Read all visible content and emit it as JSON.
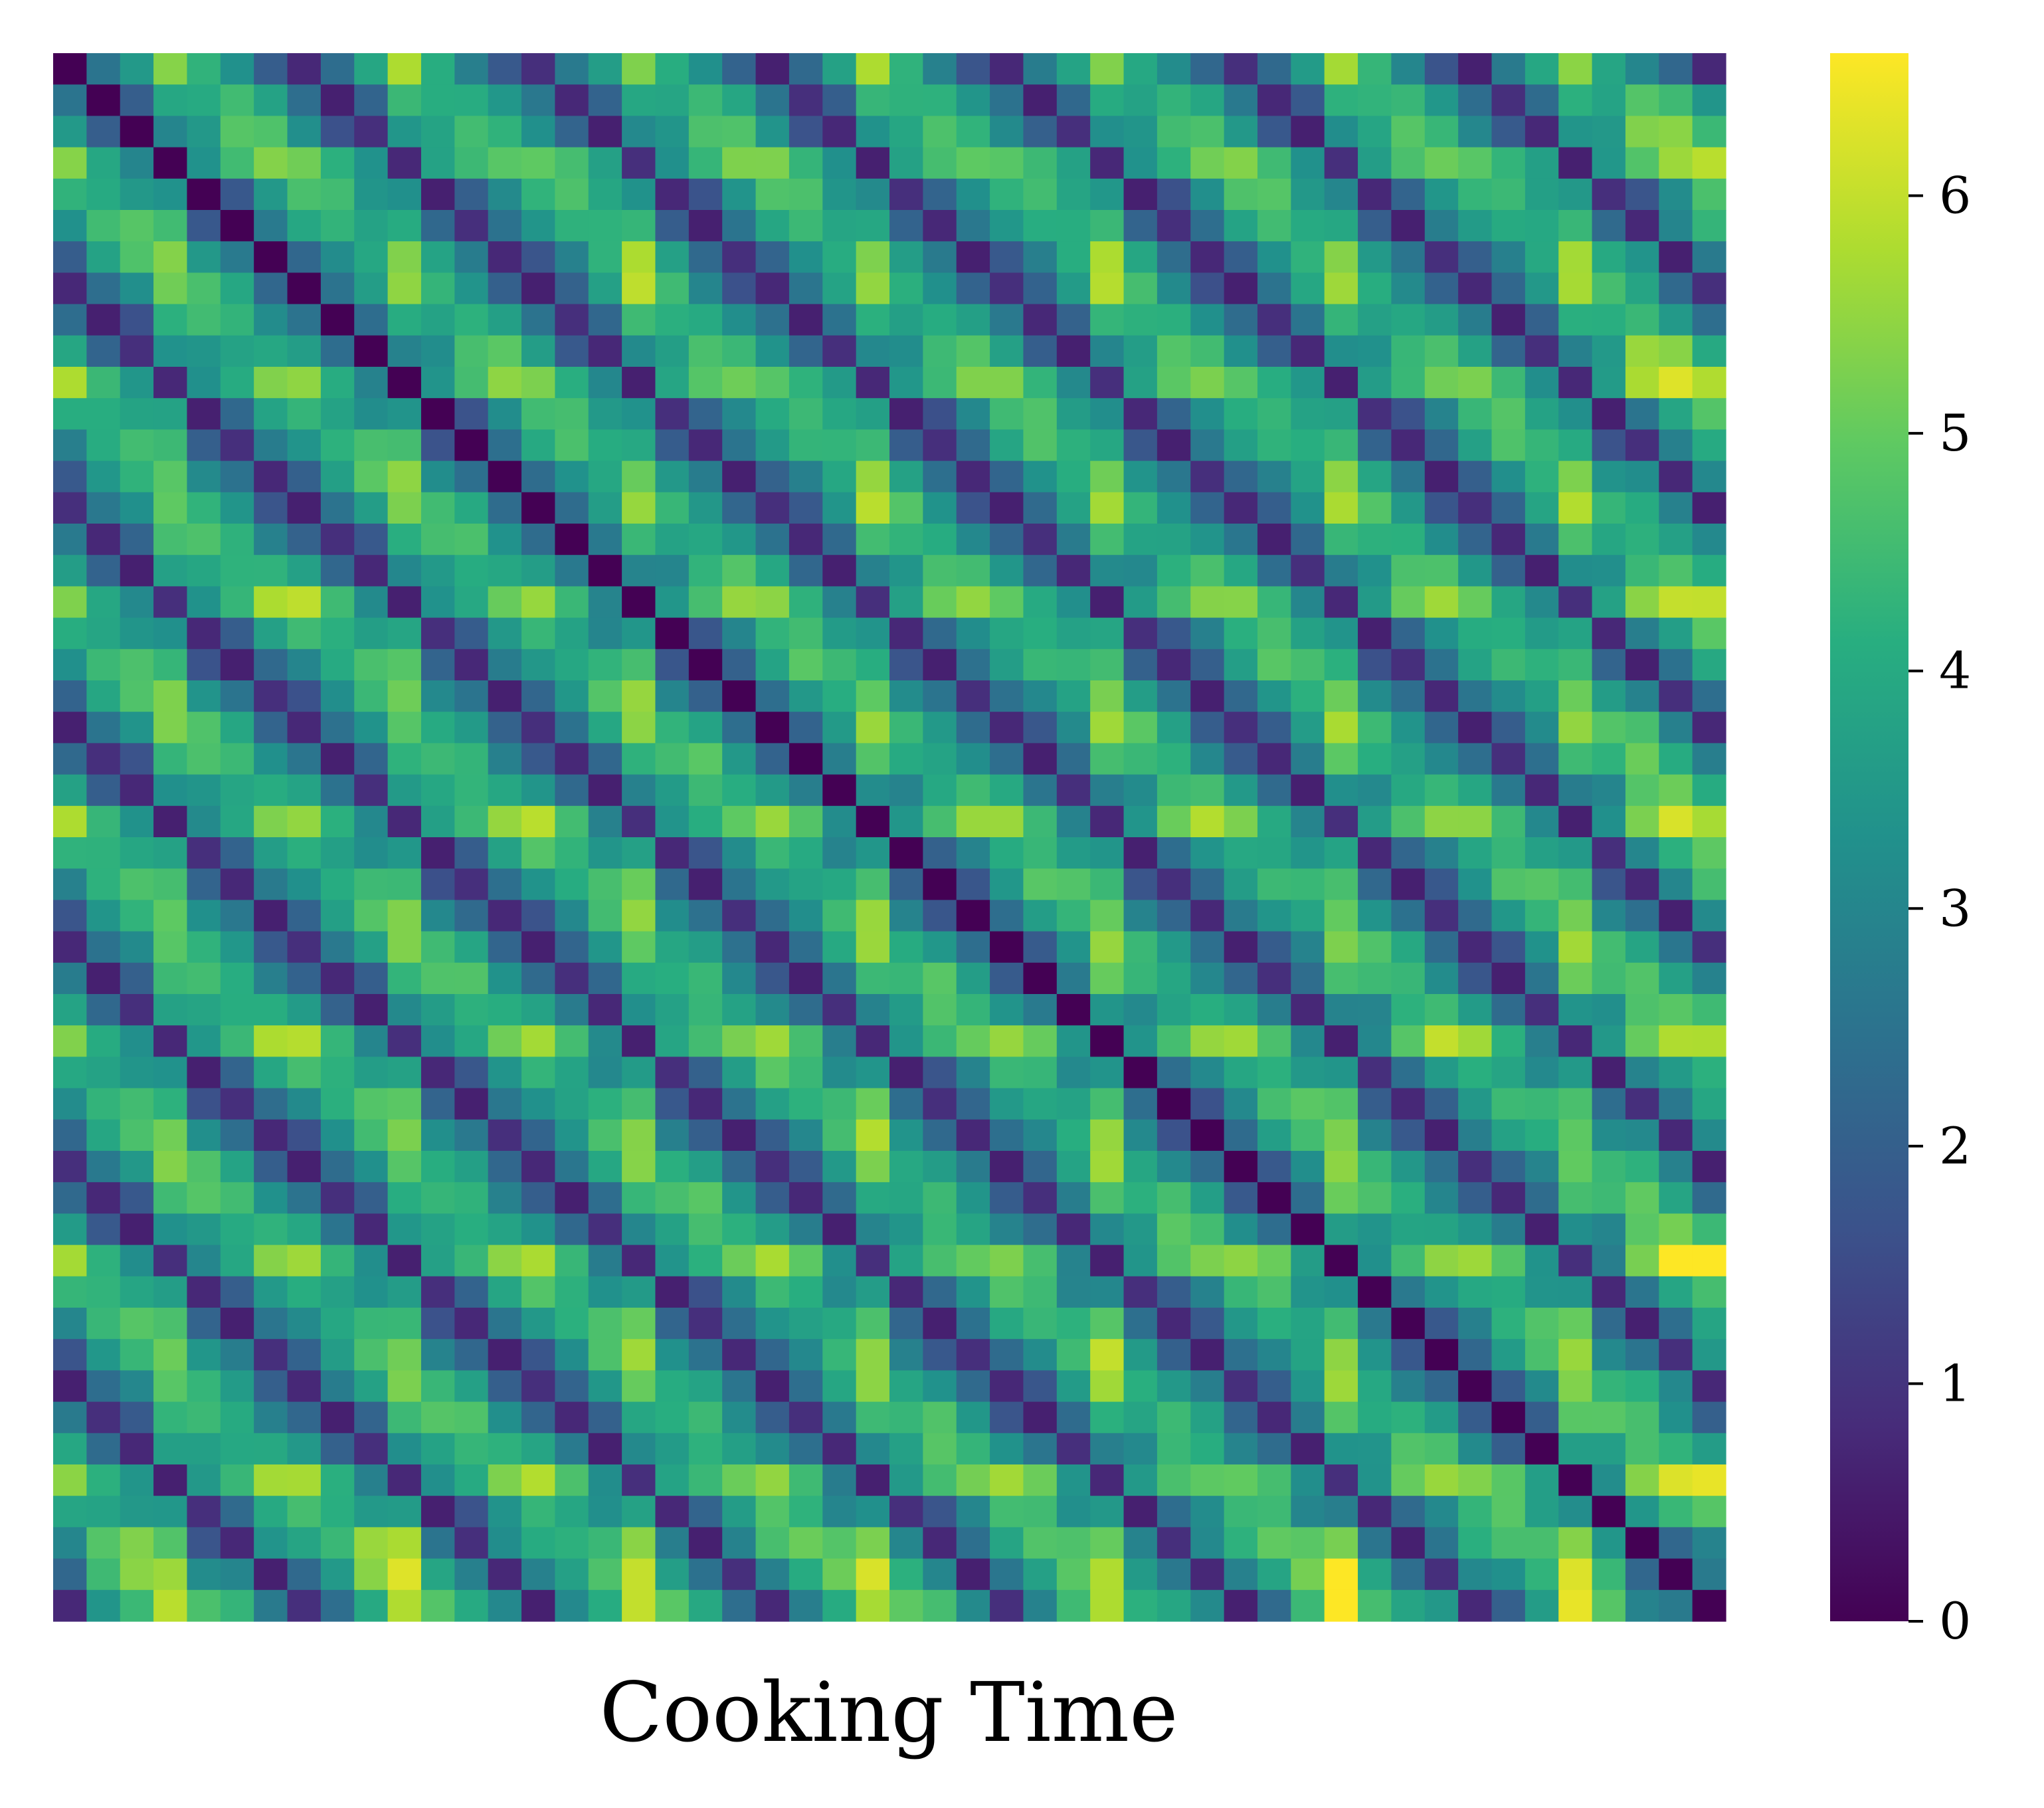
{
  "chart_data": {
    "type": "heatmap",
    "title": "",
    "xlabel": "Cooking Time",
    "ylabel": "",
    "rows": 50,
    "cols": 50,
    "colormap": "viridis",
    "vmin": 0,
    "vmax": 6.6,
    "colorbar": {
      "ticks": [
        0,
        1,
        2,
        3,
        4,
        5,
        6
      ],
      "tick_labels": [
        "0",
        "1",
        "2",
        "3",
        "4",
        "5",
        "6"
      ]
    },
    "x_tick_labels_shown": false,
    "y_tick_labels_shown": false,
    "diagonal_value": 0,
    "pattern": "symmetric distance-like matrix: zero on the main diagonal, dark (~0.5-1.5) on every 7th off-diagonal stripe, mid-range values (~3-5.5) elsewhere, brightest values (~6-6.6) in the last rows/columns",
    "values_approximate": true
  }
}
